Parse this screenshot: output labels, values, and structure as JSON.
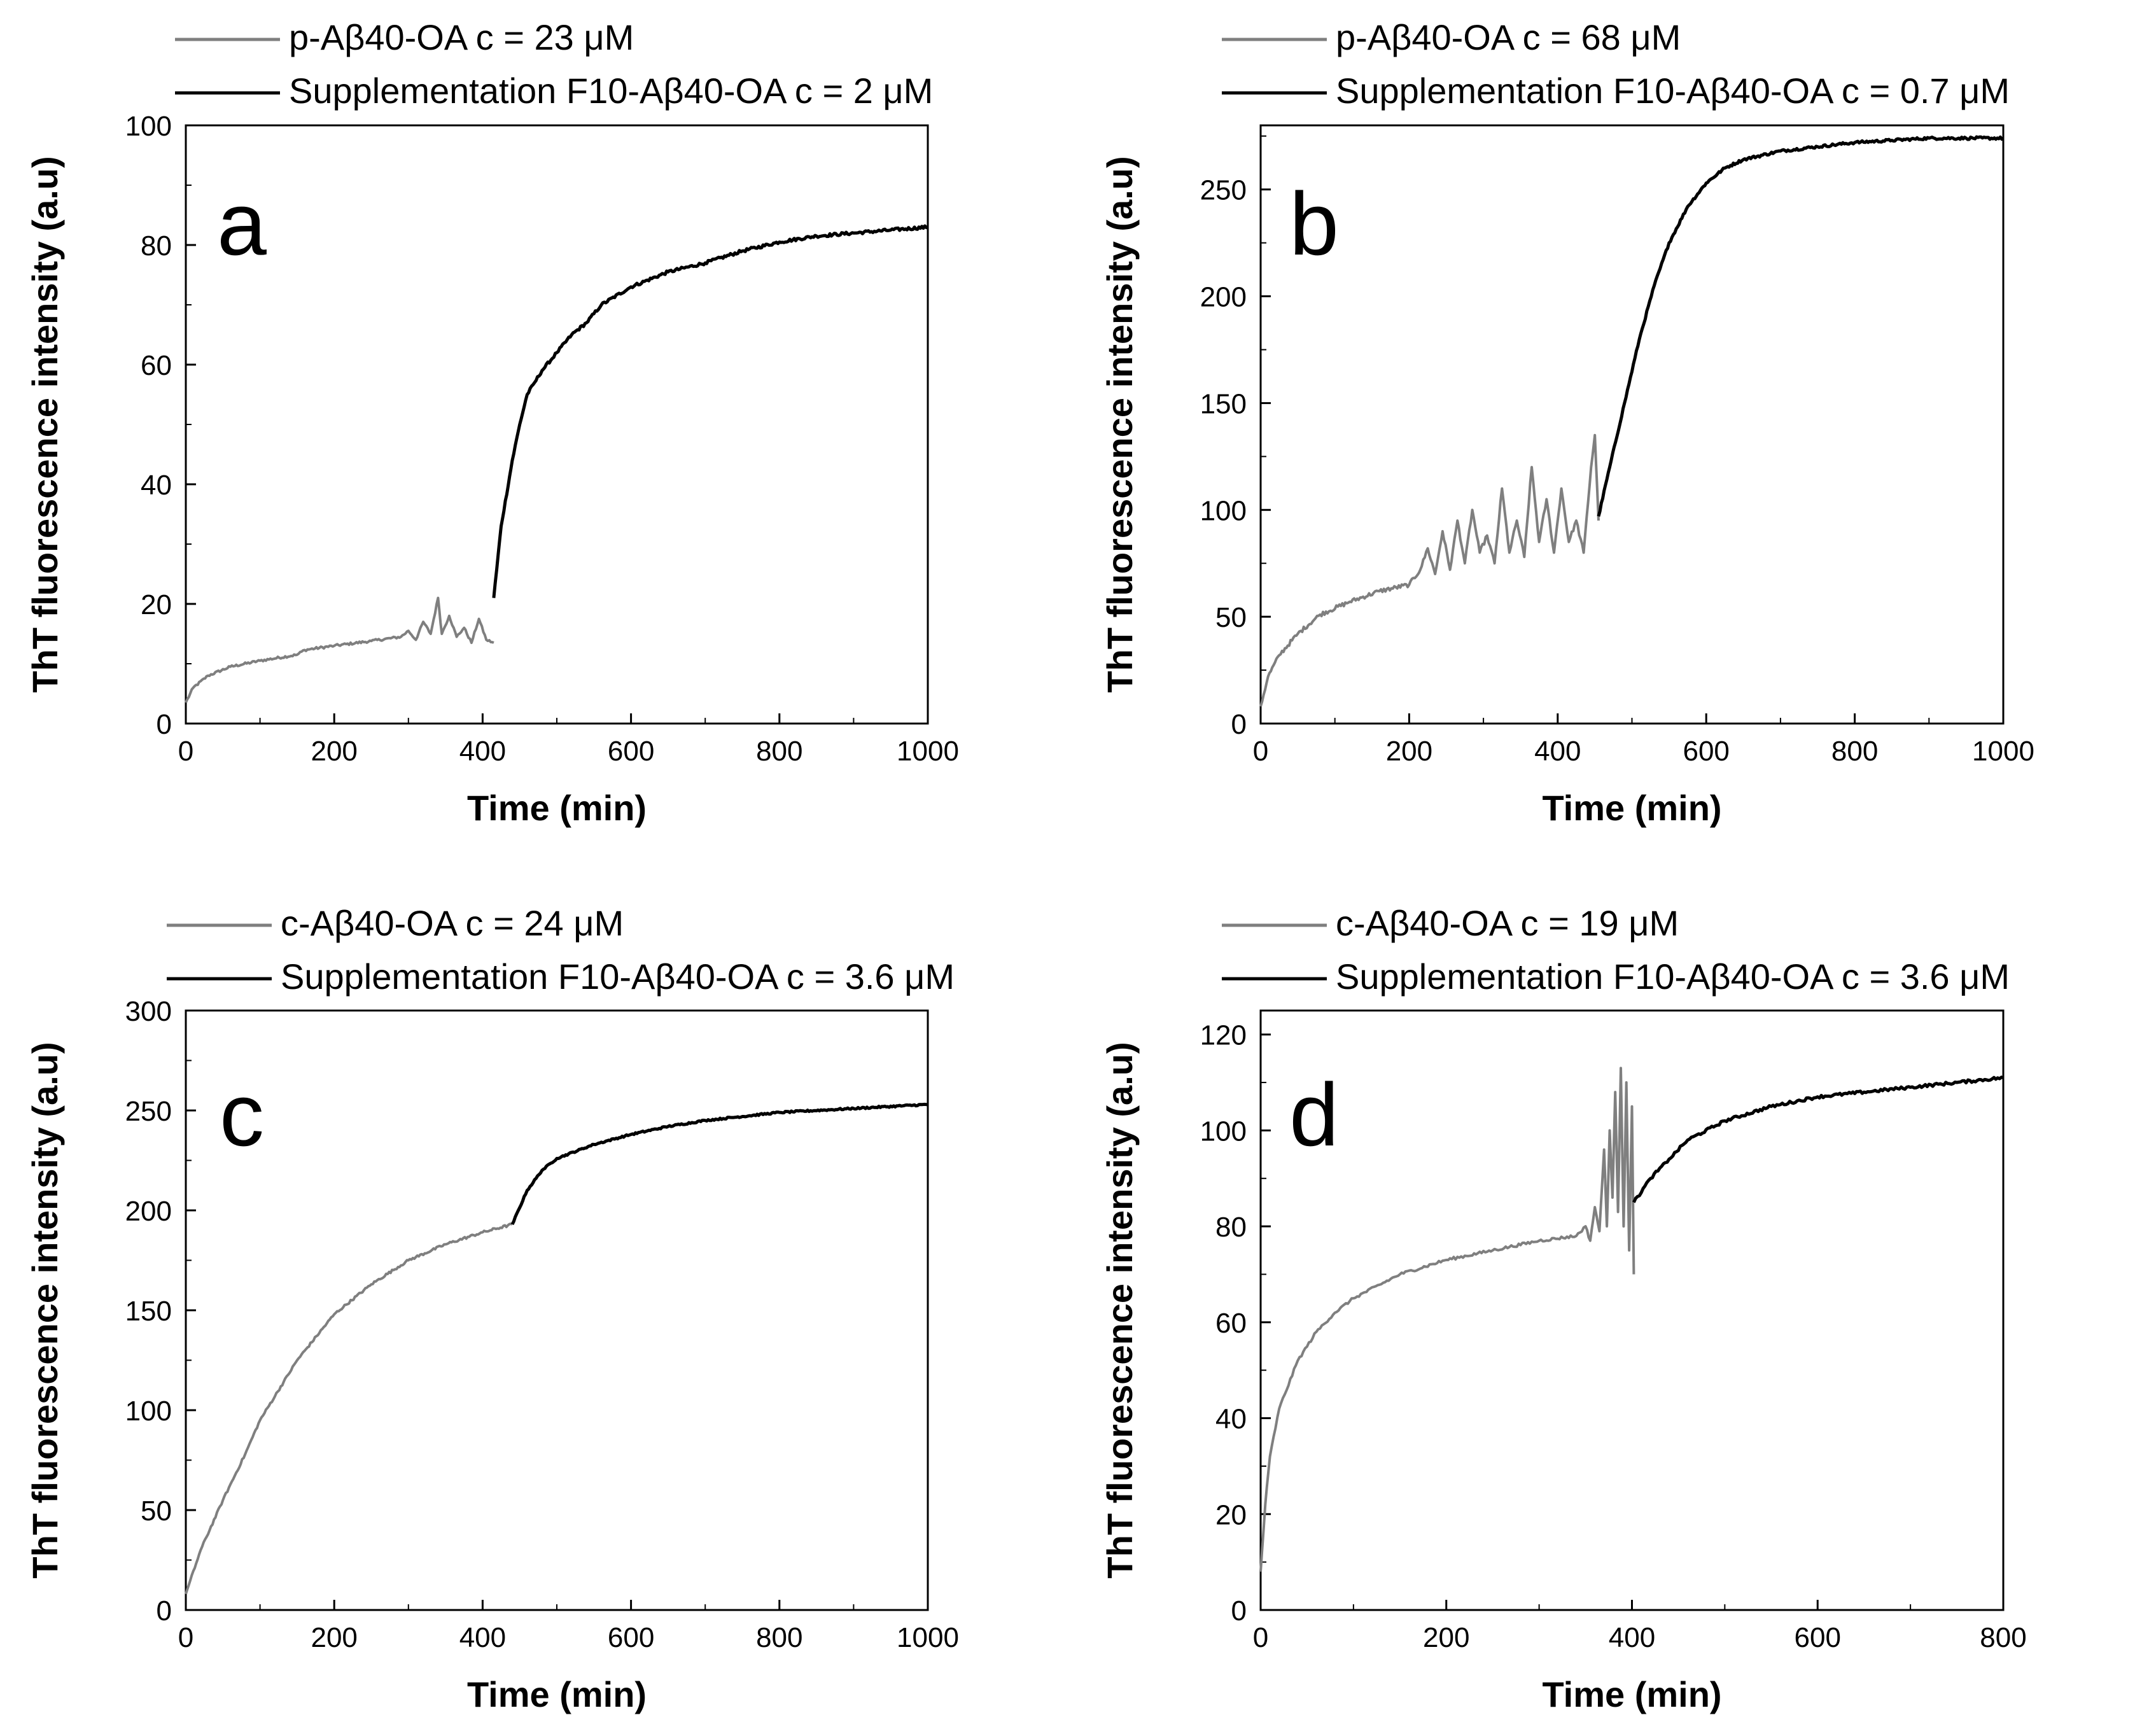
{
  "figure": {
    "colors": {
      "p_series": "#7f7f7f",
      "supplementation": "#000000",
      "axis": "#000000"
    }
  },
  "chart_data": [
    {
      "type": "line",
      "panel": "a",
      "xlabel": "Time (min)",
      "ylabel": "ThT fluorescence intensity (a.u)",
      "xlim": [
        0,
        1000
      ],
      "ylim": [
        0,
        100
      ],
      "xticks": [
        0,
        200,
        400,
        600,
        800,
        1000
      ],
      "yticks": [
        0,
        20,
        40,
        60,
        80,
        100
      ],
      "grid": false,
      "legend_position": "top",
      "series": [
        {
          "name": "p-Aβ40-OA c = 23 μM",
          "color": "#7f7f7f",
          "points": [
            [
              0,
              3.5
            ],
            [
              10,
              6
            ],
            [
              30,
              8
            ],
            [
              60,
              9.5
            ],
            [
              100,
              10.5
            ],
            [
              150,
              11.5
            ],
            [
              160,
              12.3
            ],
            [
              200,
              13
            ],
            [
              250,
              13.8
            ],
            [
              290,
              14.5
            ],
            [
              300,
              15.5
            ],
            [
              310,
              14
            ],
            [
              320,
              17
            ],
            [
              330,
              15
            ],
            [
              340,
              21
            ],
            [
              345,
              15
            ],
            [
              355,
              18
            ],
            [
              365,
              14.5
            ],
            [
              375,
              16
            ],
            [
              385,
              13.5
            ],
            [
              395,
              17.5
            ],
            [
              405,
              14
            ],
            [
              415,
              13.5
            ]
          ],
          "noise": 0.2
        },
        {
          "name": "Supplementation F10-Aβ40-OA c = 2 μM",
          "color": "#000000",
          "points": [
            [
              415,
              21
            ],
            [
              425,
              33
            ],
            [
              440,
              44
            ],
            [
              450,
              50
            ],
            [
              460,
              55
            ],
            [
              470,
              57
            ],
            [
              480,
              59
            ],
            [
              500,
              62
            ],
            [
              520,
              65
            ],
            [
              540,
              67
            ],
            [
              560,
              70
            ],
            [
              600,
              73
            ],
            [
              650,
              75.5
            ],
            [
              700,
              77
            ],
            [
              750,
              79
            ],
            [
              800,
              80.5
            ],
            [
              850,
              81.5
            ],
            [
              900,
              82
            ],
            [
              950,
              82.5
            ],
            [
              1000,
              83
            ]
          ],
          "noise": 0.25
        }
      ]
    },
    {
      "type": "line",
      "panel": "b",
      "xlabel": "Time (min)",
      "ylabel": "ThT fluorescence intensity (a.u)",
      "xlim": [
        0,
        1000
      ],
      "ylim": [
        0,
        280
      ],
      "xticks": [
        0,
        200,
        400,
        600,
        800,
        1000
      ],
      "yticks": [
        0,
        50,
        100,
        150,
        200,
        250
      ],
      "grid": false,
      "legend_position": "top",
      "series": [
        {
          "name": "p-Aβ40-OA c = 68 μM",
          "color": "#7f7f7f",
          "points": [
            [
              0,
              8
            ],
            [
              10,
              22
            ],
            [
              25,
              32
            ],
            [
              50,
              42
            ],
            [
              80,
              51
            ],
            [
              120,
              57
            ],
            [
              160,
              62
            ],
            [
              200,
              65
            ],
            [
              215,
              72
            ],
            [
              225,
              82
            ],
            [
              235,
              70
            ],
            [
              245,
              90
            ],
            [
              255,
              72
            ],
            [
              265,
              95
            ],
            [
              275,
              75
            ],
            [
              285,
              100
            ],
            [
              295,
              80
            ],
            [
              305,
              88
            ],
            [
              315,
              75
            ],
            [
              325,
              110
            ],
            [
              335,
              80
            ],
            [
              345,
              95
            ],
            [
              355,
              78
            ],
            [
              365,
              120
            ],
            [
              375,
              85
            ],
            [
              385,
              105
            ],
            [
              395,
              80
            ],
            [
              405,
              110
            ],
            [
              415,
              85
            ],
            [
              425,
              95
            ],
            [
              435,
              80
            ],
            [
              445,
              120
            ],
            [
              450,
              135
            ],
            [
              455,
              95
            ]
          ],
          "noise": 1.0
        },
        {
          "name": "Supplementation F10-Aβ40-OA c = 0.7 μM",
          "color": "#000000",
          "points": [
            [
              455,
              97
            ],
            [
              470,
              120
            ],
            [
              490,
              150
            ],
            [
              510,
              180
            ],
            [
              530,
              205
            ],
            [
              550,
              225
            ],
            [
              575,
              242
            ],
            [
              600,
              253
            ],
            [
              625,
              260
            ],
            [
              650,
              264
            ],
            [
              700,
              268
            ],
            [
              750,
              270
            ],
            [
              800,
              272
            ],
            [
              850,
              273
            ],
            [
              900,
              274
            ],
            [
              950,
              274
            ],
            [
              1000,
              274
            ]
          ],
          "noise": 0.6
        }
      ]
    },
    {
      "type": "line",
      "panel": "c",
      "xlabel": "Time (min)",
      "ylabel": "ThT fluorescence intensity (a.u)",
      "xlim": [
        0,
        1000
      ],
      "ylim": [
        0,
        300
      ],
      "xticks": [
        0,
        200,
        400,
        600,
        800,
        1000
      ],
      "yticks": [
        0,
        50,
        100,
        150,
        200,
        250,
        300
      ],
      "grid": false,
      "legend_position": "top",
      "series": [
        {
          "name": "c-Aβ40-OA c = 24 μM",
          "color": "#7f7f7f",
          "points": [
            [
              0,
              8
            ],
            [
              20,
              30
            ],
            [
              50,
              55
            ],
            [
              80,
              78
            ],
            [
              100,
              95
            ],
            [
              150,
              125
            ],
            [
              200,
              148
            ],
            [
              250,
              163
            ],
            [
              300,
              175
            ],
            [
              350,
              183
            ],
            [
              400,
              189
            ],
            [
              440,
              193
            ]
          ],
          "noise": 0.6
        },
        {
          "name": "Supplementation F10-Aβ40-OA c = 3.6 μM",
          "color": "#000000",
          "points": [
            [
              440,
              193
            ],
            [
              460,
              210
            ],
            [
              480,
              220
            ],
            [
              500,
              226
            ],
            [
              550,
              233
            ],
            [
              600,
              238
            ],
            [
              650,
              242
            ],
            [
              700,
              245
            ],
            [
              800,
              249
            ],
            [
              900,
              251
            ],
            [
              1000,
              253
            ]
          ],
          "noise": 0.4
        }
      ]
    },
    {
      "type": "line",
      "panel": "d",
      "xlabel": "Time (min)",
      "ylabel": "ThT fluorescence intensity (a.u)",
      "xlim": [
        0,
        800
      ],
      "ylim": [
        0,
        125
      ],
      "xticks": [
        0,
        200,
        400,
        600,
        800
      ],
      "yticks": [
        0,
        20,
        40,
        60,
        80,
        100,
        120
      ],
      "grid": false,
      "legend_position": "top",
      "series": [
        {
          "name": "c-Aβ40-OA c = 19 μM",
          "color": "#7f7f7f",
          "points": [
            [
              0,
              8
            ],
            [
              5,
              22
            ],
            [
              10,
              32
            ],
            [
              20,
              42
            ],
            [
              40,
              52
            ],
            [
              60,
              58
            ],
            [
              80,
              62
            ],
            [
              100,
              65
            ],
            [
              150,
              70
            ],
            [
              200,
              73
            ],
            [
              250,
              75
            ],
            [
              300,
              77
            ],
            [
              340,
              78
            ],
            [
              350,
              80
            ],
            [
              355,
              77
            ],
            [
              360,
              84
            ],
            [
              365,
              79
            ],
            [
              370,
              96
            ],
            [
              373,
              80
            ],
            [
              376,
              100
            ],
            [
              379,
              86
            ],
            [
              382,
              108
            ],
            [
              385,
              83
            ],
            [
              388,
              113
            ],
            [
              391,
              80
            ],
            [
              394,
              110
            ],
            [
              397,
              75
            ],
            [
              400,
              105
            ],
            [
              402,
              70
            ]
          ],
          "noise": 0.3
        },
        {
          "name": "Supplementation F10-Aβ40-OA c = 3.6 μM",
          "color": "#000000",
          "points": [
            [
              402,
              85
            ],
            [
              420,
              90
            ],
            [
              440,
              94
            ],
            [
              460,
              98
            ],
            [
              500,
              102
            ],
            [
              550,
              105
            ],
            [
              600,
              107
            ],
            [
              650,
              108
            ],
            [
              700,
              109
            ],
            [
              750,
              110
            ],
            [
              800,
              111
            ]
          ],
          "noise": 0.3
        }
      ]
    }
  ]
}
